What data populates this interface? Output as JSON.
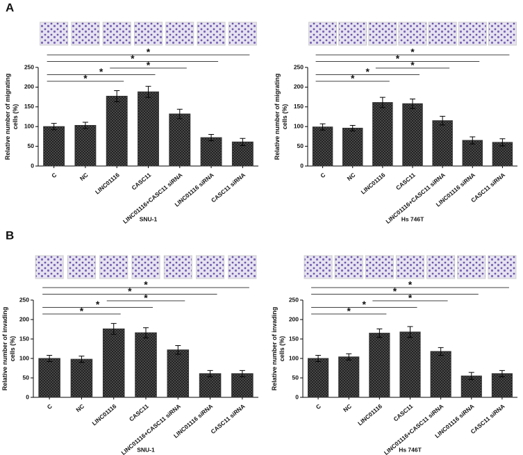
{
  "panel_labels": [
    "A",
    "B"
  ],
  "chart_data": [
    {
      "type": "bar",
      "ylabel": [
        "Relative number of migrating",
        "cells (%)"
      ],
      "xlabel": "SNU-1",
      "categories": [
        "C",
        "NC",
        "LINC01116",
        "CASC11",
        "LINC01116+CASC11 siRNA",
        "LINC01116 siRNA",
        "CASC11 siRNA"
      ],
      "values": [
        100,
        103,
        177,
        188,
        132,
        72,
        61
      ],
      "errors": [
        8,
        8,
        14,
        14,
        12,
        8,
        9
      ],
      "color": "#333333",
      "ylim": [
        0,
        250
      ],
      "yticks": [
        0,
        50,
        100,
        150,
        200,
        250
      ],
      "annotations": [
        {
          "text": "*",
          "from": "C",
          "to": "LINC01116"
        },
        {
          "text": "*",
          "from": "C",
          "to": "CASC11"
        },
        {
          "text": "*",
          "from": "LINC01116",
          "to": "LINC01116+CASC11 siRNA"
        },
        {
          "text": "*",
          "from": "C",
          "to": "LINC01116 siRNA"
        },
        {
          "text": "*",
          "from": "C",
          "to": "CASC11 siRNA"
        }
      ]
    },
    {
      "type": "bar",
      "ylabel": [
        "Relative number of migrating",
        "cells (%)"
      ],
      "xlabel": "Hs 746T",
      "categories": [
        "C",
        "NC",
        "LINC01116",
        "CASC11",
        "LINC01116+CASC11 siRNA",
        "LINC01116 siRNA",
        "CASC11 siRNA"
      ],
      "values": [
        99,
        96,
        161,
        158,
        115,
        65,
        60
      ],
      "errors": [
        8,
        7,
        13,
        12,
        11,
        9,
        9
      ],
      "color": "#333333",
      "ylim": [
        0,
        250
      ],
      "yticks": [
        0,
        50,
        100,
        150,
        200,
        250
      ],
      "annotations": [
        {
          "text": "*",
          "from": "C",
          "to": "LINC01116"
        },
        {
          "text": "*",
          "from": "C",
          "to": "CASC11"
        },
        {
          "text": "*",
          "from": "LINC01116",
          "to": "LINC01116+CASC11 siRNA"
        },
        {
          "text": "*",
          "from": "C",
          "to": "LINC01116 siRNA"
        },
        {
          "text": "*",
          "from": "C",
          "to": "CASC11 siRNA"
        }
      ]
    },
    {
      "type": "bar",
      "ylabel": [
        "Relative number of invading",
        "cells (%)"
      ],
      "xlabel": "SNU-1",
      "categories": [
        "C",
        "NC",
        "LINC01116",
        "CASC11",
        "LINC01116+CASC11 siRNA",
        "LINC01116 siRNA",
        "CASC11 siRNA"
      ],
      "values": [
        100,
        98,
        176,
        166,
        122,
        61,
        61
      ],
      "errors": [
        8,
        8,
        14,
        13,
        11,
        8,
        8
      ],
      "color": "#333333",
      "ylim": [
        0,
        250
      ],
      "yticks": [
        0,
        50,
        100,
        150,
        200,
        250
      ],
      "annotations": [
        {
          "text": "*",
          "from": "C",
          "to": "LINC01116"
        },
        {
          "text": "*",
          "from": "C",
          "to": "CASC11"
        },
        {
          "text": "*",
          "from": "LINC01116",
          "to": "LINC01116+CASC11 siRNA"
        },
        {
          "text": "*",
          "from": "C",
          "to": "LINC01116 siRNA"
        },
        {
          "text": "*",
          "from": "C",
          "to": "CASC11 siRNA"
        }
      ]
    },
    {
      "type": "bar",
      "ylabel": [
        "Relative number of invading",
        "cells (%)"
      ],
      "xlabel": "Hs 746T",
      "categories": [
        "C",
        "NC",
        "LINC01116",
        "CASC11",
        "LINC01116+CASC11 siRNA",
        "LINC01116 siRNA",
        "CASC11 siRNA"
      ],
      "values": [
        100,
        104,
        165,
        168,
        118,
        55,
        61
      ],
      "errors": [
        8,
        8,
        11,
        14,
        10,
        9,
        8
      ],
      "color": "#333333",
      "ylim": [
        0,
        250
      ],
      "yticks": [
        0,
        50,
        100,
        150,
        200,
        250
      ],
      "annotations": [
        {
          "text": "*",
          "from": "C",
          "to": "LINC01116"
        },
        {
          "text": "*",
          "from": "C",
          "to": "CASC11"
        },
        {
          "text": "*",
          "from": "LINC01116",
          "to": "LINC01116+CASC11 siRNA"
        },
        {
          "text": "*",
          "from": "C",
          "to": "LINC01116 siRNA"
        },
        {
          "text": "*",
          "from": "C",
          "to": "CASC11 siRNA"
        }
      ]
    }
  ]
}
